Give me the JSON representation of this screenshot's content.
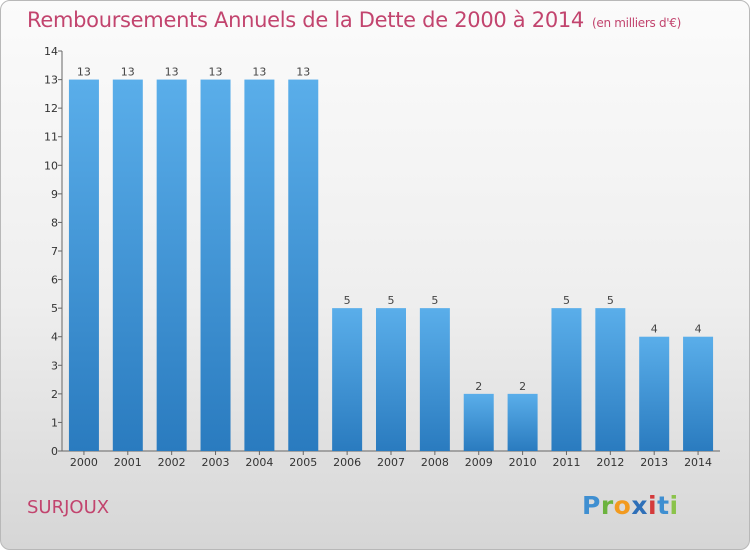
{
  "title": "Remboursements Annuels de la Dette de 2000 à 2014",
  "subtitle": "(en milliers d'€)",
  "commune": "SURJOUX",
  "logo": {
    "text": "Proxiti"
  },
  "colors": {
    "title": "#c2446e",
    "bar_top": "#5aaeea",
    "bar_bottom": "#2a7bbf"
  },
  "chart_data": {
    "type": "bar",
    "title": "Remboursements Annuels de la Dette de 2000 à 2014",
    "subtitle": "(en milliers d'€)",
    "xlabel": "",
    "ylabel": "",
    "categories": [
      "2000",
      "2001",
      "2002",
      "2003",
      "2004",
      "2005",
      "2006",
      "2007",
      "2008",
      "2009",
      "2010",
      "2011",
      "2012",
      "2013",
      "2014"
    ],
    "values": [
      13,
      13,
      13,
      13,
      13,
      13,
      5,
      5,
      5,
      2,
      2,
      5,
      5,
      4,
      4
    ],
    "data_labels": [
      "13",
      "13",
      "13",
      "13",
      "13",
      "13",
      "5",
      "5",
      "5",
      "2",
      "2",
      "5",
      "5",
      "4",
      "4"
    ],
    "yticks": [
      "0",
      "1",
      "2",
      "3",
      "4",
      "5",
      "6",
      "7",
      "8",
      "9",
      "10",
      "11",
      "12",
      "13",
      "14"
    ],
    "ylim": [
      0,
      14
    ],
    "grid": false,
    "legend": "none"
  }
}
